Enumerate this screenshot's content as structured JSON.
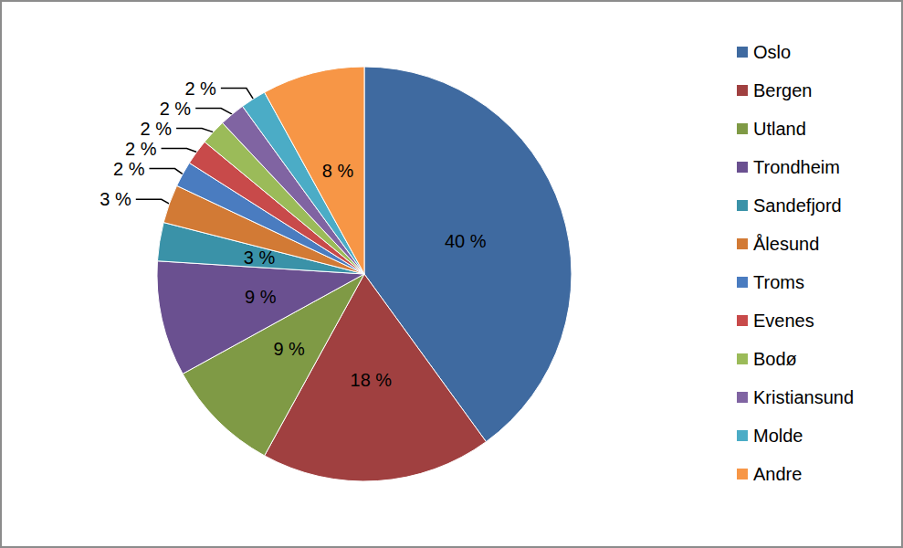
{
  "chart_data": {
    "type": "pie",
    "categories": [
      "Oslo",
      "Bergen",
      "Utland",
      "Trondheim",
      "Sandefjord",
      "Ålesund",
      "Troms",
      "Evenes",
      "Bodø",
      "Kristiansund",
      "Molde",
      "Andre"
    ],
    "values": [
      40,
      18,
      9,
      9,
      3,
      3,
      2,
      2,
      2,
      2,
      2,
      8
    ],
    "value_labels": [
      "40 %",
      "18 %",
      "9 %",
      "9 %",
      "3 %",
      "3 %",
      "2 %",
      "2 %",
      "2 %",
      "2 %",
      "2 %",
      "8 %"
    ],
    "colors": [
      "#3F6AA0",
      "#A04040",
      "#7F9A45",
      "#6A5090",
      "#3A92A8",
      "#D27A35",
      "#4A7CC0",
      "#C84A4A",
      "#9BBB59",
      "#8064A2",
      "#4BACC6",
      "#F79646"
    ],
    "data_labels": true,
    "legend": "right"
  }
}
